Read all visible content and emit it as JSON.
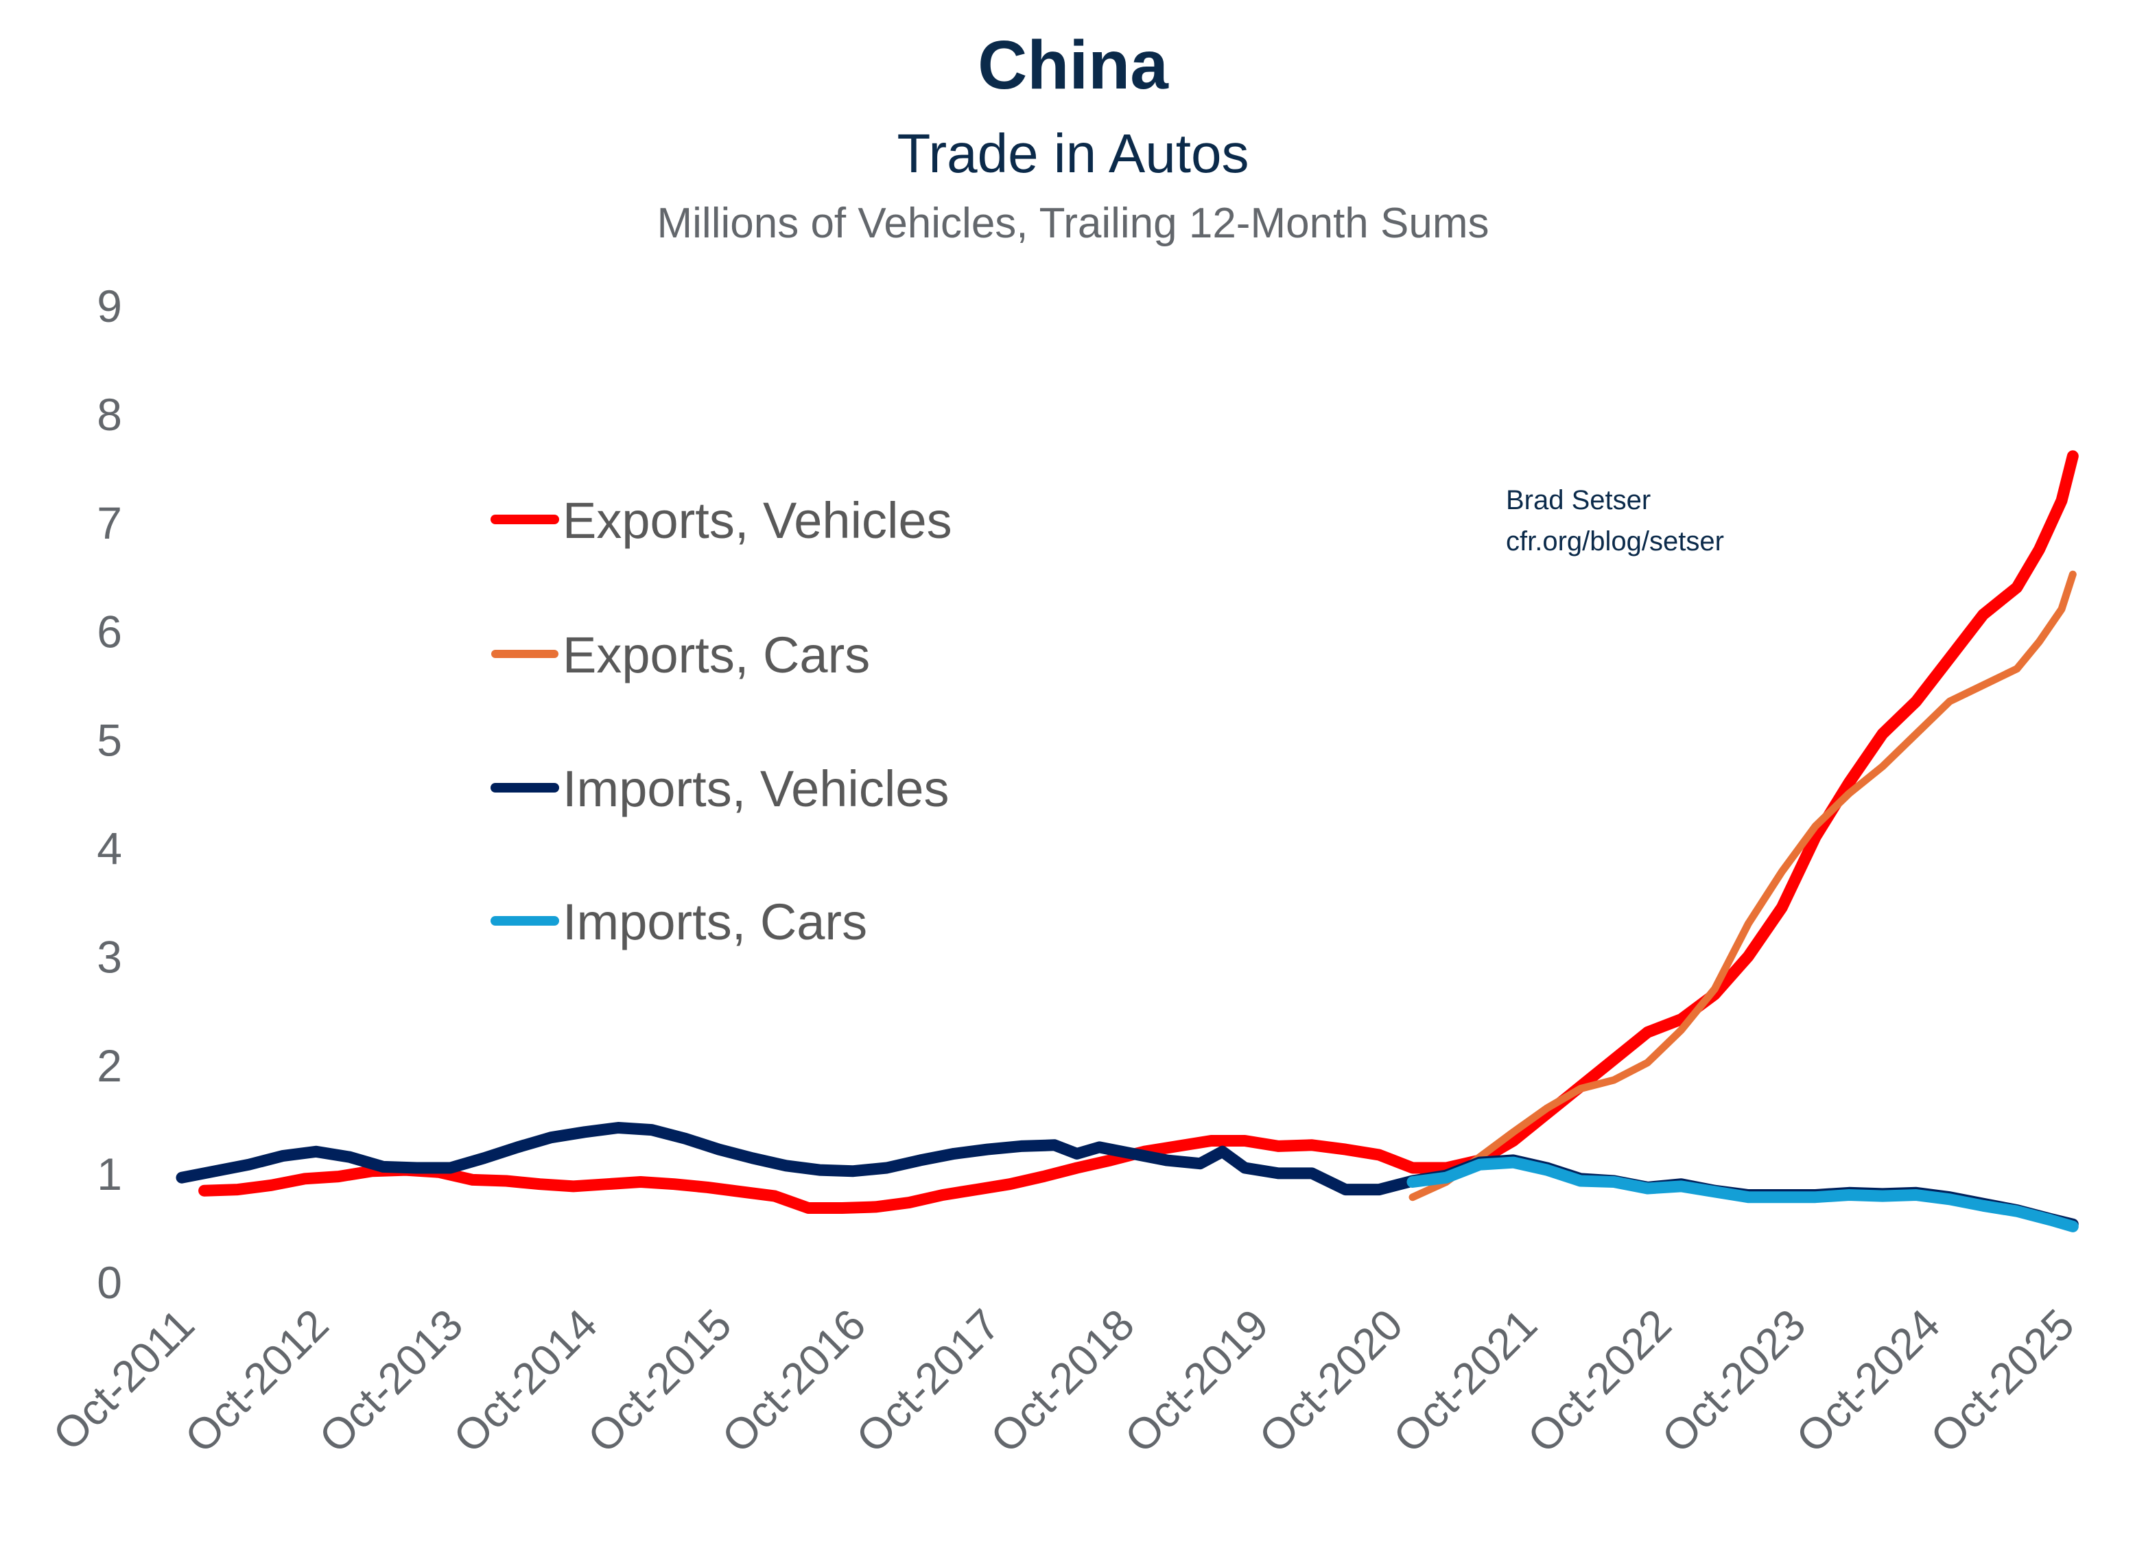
{
  "chart_data": {
    "type": "line",
    "title": "China",
    "subtitle": "Trade in Autos",
    "units_note": "Millions of Vehicles, Trailing 12-Month Sums",
    "xlabel": "",
    "ylabel": "",
    "ylim": [
      0,
      9
    ],
    "yticks": [
      "0",
      "1",
      "2",
      "3",
      "4",
      "5",
      "6",
      "7",
      "8",
      "9"
    ],
    "x_start": "Oct-2011",
    "x_months_span": 168,
    "xticks": [
      "Oct-2011",
      "Oct-2012",
      "Oct-2013",
      "Oct-2014",
      "Oct-2015",
      "Oct-2016",
      "Oct-2017",
      "Oct-2018",
      "Oct-2019",
      "Oct-2020",
      "Oct-2021",
      "Oct-2022",
      "Oct-2023",
      "Oct-2024",
      "Oct-2025"
    ],
    "grid": false,
    "legend_position": "upper-left",
    "annotation": [
      "Brad Setser",
      "cfr.org/blog/setser"
    ],
    "series": [
      {
        "name": "Exports, Vehicles",
        "color": "#ff0000",
        "width": "thick",
        "points": [
          [
            2,
            0.84
          ],
          [
            5,
            0.85
          ],
          [
            8,
            0.89
          ],
          [
            11,
            0.95
          ],
          [
            14,
            0.97
          ],
          [
            17,
            1.02
          ],
          [
            20,
            1.03
          ],
          [
            23,
            1.01
          ],
          [
            26,
            0.94
          ],
          [
            29,
            0.93
          ],
          [
            32,
            0.9
          ],
          [
            35,
            0.88
          ],
          [
            38,
            0.9
          ],
          [
            41,
            0.92
          ],
          [
            44,
            0.9
          ],
          [
            47,
            0.87
          ],
          [
            50,
            0.83
          ],
          [
            53,
            0.79
          ],
          [
            56,
            0.68
          ],
          [
            59,
            0.68
          ],
          [
            62,
            0.69
          ],
          [
            65,
            0.73
          ],
          [
            68,
            0.8
          ],
          [
            71,
            0.85
          ],
          [
            74,
            0.9
          ],
          [
            77,
            0.97
          ],
          [
            80,
            1.05
          ],
          [
            83,
            1.12
          ],
          [
            86,
            1.2
          ],
          [
            89,
            1.25
          ],
          [
            92,
            1.3
          ],
          [
            95,
            1.3
          ],
          [
            98,
            1.25
          ],
          [
            101,
            1.26
          ],
          [
            104,
            1.22
          ],
          [
            107,
            1.17
          ],
          [
            110,
            1.05
          ],
          [
            113,
            1.05
          ],
          [
            116,
            1.12
          ],
          [
            119,
            1.3
          ],
          [
            122,
            1.55
          ],
          [
            125,
            1.8
          ],
          [
            128,
            2.05
          ],
          [
            131,
            2.3
          ],
          [
            134,
            2.42
          ],
          [
            137,
            2.65
          ],
          [
            140,
            3.0
          ],
          [
            143,
            3.45
          ],
          [
            146,
            4.1
          ],
          [
            149,
            4.6
          ],
          [
            152,
            5.05
          ],
          [
            155,
            5.35
          ],
          [
            158,
            5.75
          ],
          [
            161,
            6.15
          ],
          [
            164,
            6.4
          ],
          [
            166,
            6.75
          ],
          [
            168,
            7.2
          ],
          [
            169,
            7.61
          ]
        ]
      },
      {
        "name": "Exports, Cars",
        "color": "#e87136",
        "width": "thin",
        "points": [
          [
            110,
            0.78
          ],
          [
            113,
            0.92
          ],
          [
            116,
            1.15
          ],
          [
            119,
            1.38
          ],
          [
            122,
            1.6
          ],
          [
            125,
            1.78
          ],
          [
            128,
            1.86
          ],
          [
            131,
            2.02
          ],
          [
            134,
            2.32
          ],
          [
            137,
            2.7
          ],
          [
            140,
            3.3
          ],
          [
            143,
            3.78
          ],
          [
            146,
            4.2
          ],
          [
            149,
            4.5
          ],
          [
            152,
            4.75
          ],
          [
            155,
            5.05
          ],
          [
            158,
            5.35
          ],
          [
            161,
            5.5
          ],
          [
            164,
            5.65
          ],
          [
            166,
            5.9
          ],
          [
            168,
            6.2
          ],
          [
            169,
            6.52
          ]
        ]
      },
      {
        "name": "Imports, Vehicles",
        "color": "#00205b",
        "width": "thick",
        "points": [
          [
            0,
            0.96
          ],
          [
            3,
            1.02
          ],
          [
            6,
            1.08
          ],
          [
            9,
            1.16
          ],
          [
            12,
            1.2
          ],
          [
            15,
            1.15
          ],
          [
            18,
            1.06
          ],
          [
            21,
            1.05
          ],
          [
            24,
            1.05
          ],
          [
            27,
            1.14
          ],
          [
            30,
            1.24
          ],
          [
            33,
            1.33
          ],
          [
            36,
            1.38
          ],
          [
            39,
            1.42
          ],
          [
            42,
            1.4
          ],
          [
            45,
            1.32
          ],
          [
            48,
            1.22
          ],
          [
            51,
            1.14
          ],
          [
            54,
            1.07
          ],
          [
            57,
            1.03
          ],
          [
            60,
            1.02
          ],
          [
            63,
            1.05
          ],
          [
            66,
            1.12
          ],
          [
            69,
            1.18
          ],
          [
            72,
            1.22
          ],
          [
            75,
            1.25
          ],
          [
            78,
            1.26
          ],
          [
            80,
            1.18
          ],
          [
            82,
            1.24
          ],
          [
            85,
            1.18
          ],
          [
            88,
            1.12
          ],
          [
            91,
            1.09
          ],
          [
            93,
            1.2
          ],
          [
            95,
            1.05
          ],
          [
            98,
            1.0
          ],
          [
            101,
            1.0
          ],
          [
            104,
            0.85
          ],
          [
            107,
            0.85
          ],
          [
            110,
            0.93
          ],
          [
            113,
            0.98
          ],
          [
            116,
            1.1
          ],
          [
            119,
            1.12
          ],
          [
            122,
            1.05
          ],
          [
            125,
            0.95
          ],
          [
            128,
            0.93
          ],
          [
            131,
            0.87
          ],
          [
            134,
            0.9
          ],
          [
            137,
            0.84
          ],
          [
            140,
            0.8
          ],
          [
            143,
            0.8
          ],
          [
            146,
            0.8
          ],
          [
            149,
            0.82
          ],
          [
            152,
            0.81
          ],
          [
            155,
            0.82
          ],
          [
            158,
            0.78
          ],
          [
            161,
            0.72
          ],
          [
            164,
            0.66
          ],
          [
            167,
            0.58
          ],
          [
            169,
            0.53
          ]
        ]
      },
      {
        "name": "Imports, Cars",
        "color": "#149fd6",
        "width": "thick",
        "points": [
          [
            110,
            0.92
          ],
          [
            113,
            0.96
          ],
          [
            116,
            1.08
          ],
          [
            119,
            1.1
          ],
          [
            122,
            1.03
          ],
          [
            125,
            0.93
          ],
          [
            128,
            0.92
          ],
          [
            131,
            0.86
          ],
          [
            134,
            0.88
          ],
          [
            137,
            0.83
          ],
          [
            140,
            0.78
          ],
          [
            143,
            0.78
          ],
          [
            146,
            0.78
          ],
          [
            149,
            0.8
          ],
          [
            152,
            0.79
          ],
          [
            155,
            0.8
          ],
          [
            158,
            0.76
          ],
          [
            161,
            0.7
          ],
          [
            164,
            0.65
          ],
          [
            167,
            0.57
          ],
          [
            169,
            0.51
          ]
        ]
      }
    ]
  }
}
